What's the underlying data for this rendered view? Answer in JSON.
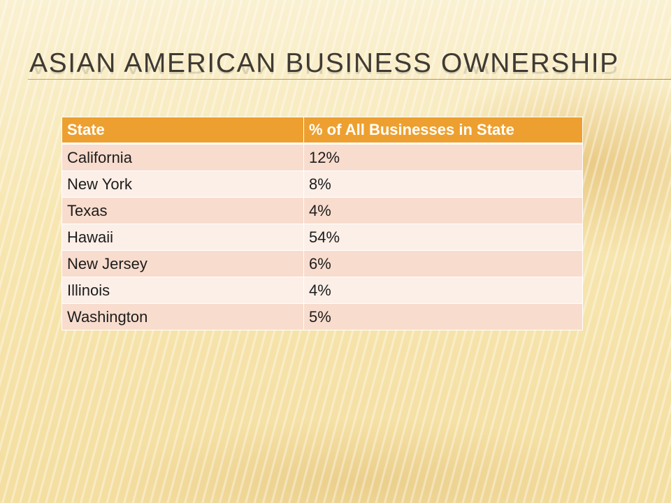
{
  "slide": {
    "title": "ASIAN AMERICAN BUSINESS OWNERSHIP"
  },
  "table": {
    "headers": [
      "State",
      "% of All Businesses in State"
    ],
    "rows": [
      [
        "California",
        "12%"
      ],
      [
        "New York",
        "8%"
      ],
      [
        "Texas",
        "4%"
      ],
      [
        "Hawaii",
        "54%"
      ],
      [
        "New Jersey",
        "6%"
      ],
      [
        "Illinois",
        "4%"
      ],
      [
        "Washington",
        "5%"
      ]
    ]
  },
  "colors": {
    "header_fill": "#eda02f",
    "row_odd": "#f8dccd",
    "row_even": "#fcefe8",
    "background": "#f7e7b2"
  }
}
